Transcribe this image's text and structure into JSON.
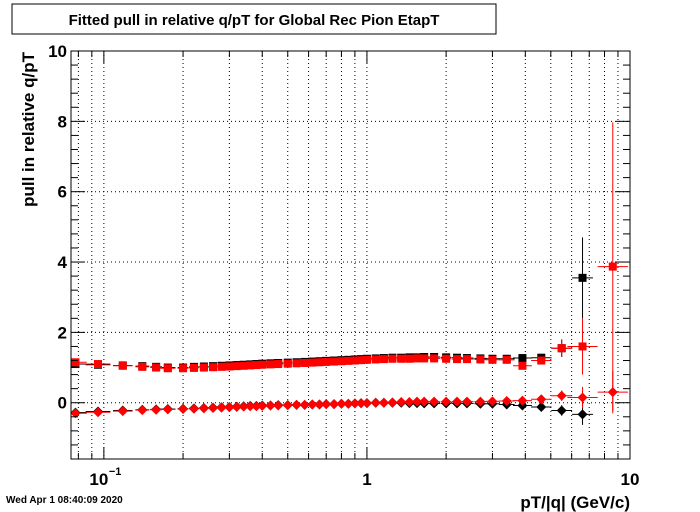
{
  "timestamp": "Wed Apr  1 08:40:09 2020",
  "chart_data": {
    "type": "scatter",
    "title": "Fitted pull in relative q/pT for Global Rec Pion EtapT",
    "xlabel": "pT/|q| (GeV/c)",
    "ylabel": "pull in relative q/pT",
    "xscale": "log",
    "xlim": [
      0.075,
      10
    ],
    "ylim": [
      -1.6,
      10
    ],
    "grid": true,
    "x_ticks": [
      {
        "value": 0.1,
        "label": "10",
        "exponent": "−1"
      },
      {
        "value": 1,
        "label": "1",
        "exponent": ""
      },
      {
        "value": 10,
        "label": "10",
        "exponent": ""
      }
    ],
    "y_ticks": [
      {
        "value": 0,
        "label": "0"
      },
      {
        "value": 2,
        "label": "2"
      },
      {
        "value": 4,
        "label": "4"
      },
      {
        "value": 6,
        "label": "6"
      },
      {
        "value": 8,
        "label": "8"
      },
      {
        "value": 10,
        "label": "10"
      }
    ],
    "series": [
      {
        "marker": "square",
        "color": "#000000",
        "x": [
          0.078,
          0.095,
          0.118,
          0.14,
          0.158,
          0.175,
          0.2,
          0.22,
          0.24,
          0.26,
          0.28,
          0.3,
          0.32,
          0.34,
          0.36,
          0.38,
          0.4,
          0.43,
          0.46,
          0.5,
          0.54,
          0.58,
          0.62,
          0.66,
          0.7,
          0.75,
          0.8,
          0.85,
          0.9,
          0.95,
          1.0,
          1.08,
          1.16,
          1.25,
          1.35,
          1.45,
          1.55,
          1.65,
          1.8,
          2.0,
          2.2,
          2.4,
          2.7,
          3.0,
          3.4,
          3.9,
          4.6,
          5.5,
          6.6
        ],
        "y": [
          1.1,
          1.08,
          1.06,
          1.04,
          1.02,
          1.0,
          1.0,
          1.02,
          1.03,
          1.04,
          1.05,
          1.06,
          1.07,
          1.08,
          1.09,
          1.1,
          1.11,
          1.12,
          1.13,
          1.14,
          1.15,
          1.16,
          1.17,
          1.18,
          1.19,
          1.2,
          1.21,
          1.22,
          1.23,
          1.24,
          1.25,
          1.26,
          1.27,
          1.28,
          1.28,
          1.29,
          1.29,
          1.3,
          1.3,
          1.29,
          1.28,
          1.27,
          1.26,
          1.25,
          1.25,
          1.27,
          1.28,
          1.55,
          3.55
        ],
        "yerr": [
          0.06,
          0.05,
          0.04,
          0.04,
          0.04,
          0.04,
          0.04,
          0.04,
          0.03,
          0.03,
          0.03,
          0.03,
          0.03,
          0.03,
          0.03,
          0.03,
          0.03,
          0.03,
          0.03,
          0.03,
          0.03,
          0.03,
          0.03,
          0.03,
          0.03,
          0.03,
          0.03,
          0.03,
          0.03,
          0.03,
          0.03,
          0.03,
          0.03,
          0.03,
          0.03,
          0.03,
          0.03,
          0.03,
          0.03,
          0.04,
          0.04,
          0.05,
          0.05,
          0.06,
          0.07,
          0.08,
          0.1,
          0.25,
          1.15
        ]
      },
      {
        "marker": "square",
        "color": "#ff0000",
        "x": [
          0.078,
          0.095,
          0.118,
          0.14,
          0.158,
          0.175,
          0.2,
          0.22,
          0.24,
          0.26,
          0.28,
          0.3,
          0.32,
          0.34,
          0.36,
          0.38,
          0.4,
          0.43,
          0.46,
          0.5,
          0.54,
          0.58,
          0.62,
          0.66,
          0.7,
          0.75,
          0.8,
          0.85,
          0.9,
          0.95,
          1.0,
          1.08,
          1.16,
          1.25,
          1.35,
          1.45,
          1.55,
          1.65,
          1.8,
          2.0,
          2.2,
          2.4,
          2.7,
          3.0,
          3.4,
          3.9,
          4.6,
          5.5,
          6.6,
          8.6
        ],
        "y": [
          1.15,
          1.1,
          1.05,
          1.02,
          1.0,
          0.98,
          0.98,
          0.99,
          1.0,
          1.01,
          1.02,
          1.03,
          1.04,
          1.05,
          1.06,
          1.07,
          1.08,
          1.09,
          1.1,
          1.11,
          1.12,
          1.13,
          1.14,
          1.15,
          1.16,
          1.17,
          1.18,
          1.19,
          1.2,
          1.21,
          1.22,
          1.23,
          1.24,
          1.25,
          1.25,
          1.25,
          1.26,
          1.26,
          1.26,
          1.25,
          1.24,
          1.24,
          1.23,
          1.22,
          1.22,
          1.05,
          1.2,
          1.55,
          1.6,
          3.87
        ],
        "yerr": [
          0.06,
          0.05,
          0.04,
          0.04,
          0.04,
          0.04,
          0.04,
          0.04,
          0.03,
          0.03,
          0.03,
          0.03,
          0.03,
          0.03,
          0.03,
          0.03,
          0.03,
          0.03,
          0.03,
          0.03,
          0.03,
          0.03,
          0.03,
          0.03,
          0.03,
          0.03,
          0.03,
          0.03,
          0.03,
          0.03,
          0.03,
          0.03,
          0.03,
          0.03,
          0.03,
          0.03,
          0.03,
          0.03,
          0.03,
          0.04,
          0.04,
          0.05,
          0.05,
          0.06,
          0.07,
          0.08,
          0.1,
          0.25,
          0.8,
          4.1
        ]
      },
      {
        "marker": "diamond",
        "color": "#000000",
        "x": [
          0.078,
          0.095,
          0.118,
          0.14,
          0.158,
          0.175,
          0.2,
          0.22,
          0.24,
          0.26,
          0.28,
          0.3,
          0.32,
          0.34,
          0.36,
          0.38,
          0.4,
          0.43,
          0.46,
          0.5,
          0.54,
          0.58,
          0.62,
          0.66,
          0.7,
          0.75,
          0.8,
          0.85,
          0.9,
          0.95,
          1.0,
          1.08,
          1.16,
          1.25,
          1.35,
          1.45,
          1.55,
          1.65,
          1.8,
          2.0,
          2.2,
          2.4,
          2.7,
          3.0,
          3.4,
          3.9,
          4.6,
          5.5,
          6.6
        ],
        "y": [
          -0.28,
          -0.25,
          -0.22,
          -0.2,
          -0.19,
          -0.18,
          -0.17,
          -0.16,
          -0.15,
          -0.14,
          -0.13,
          -0.12,
          -0.11,
          -0.1,
          -0.09,
          -0.09,
          -0.08,
          -0.08,
          -0.07,
          -0.07,
          -0.06,
          -0.06,
          -0.05,
          -0.05,
          -0.04,
          -0.04,
          -0.03,
          -0.03,
          -0.02,
          -0.01,
          -0.01,
          0.0,
          0.0,
          0.0,
          0.0,
          -0.01,
          -0.01,
          -0.02,
          -0.02,
          -0.02,
          -0.02,
          -0.02,
          -0.03,
          -0.03,
          -0.05,
          -0.08,
          -0.12,
          -0.22,
          -0.33
        ],
        "yerr": [
          0.05,
          0.04,
          0.04,
          0.03,
          0.03,
          0.03,
          0.03,
          0.03,
          0.03,
          0.03,
          0.03,
          0.03,
          0.03,
          0.03,
          0.03,
          0.03,
          0.03,
          0.03,
          0.03,
          0.03,
          0.03,
          0.03,
          0.03,
          0.03,
          0.03,
          0.03,
          0.03,
          0.03,
          0.03,
          0.03,
          0.03,
          0.03,
          0.03,
          0.03,
          0.03,
          0.03,
          0.03,
          0.03,
          0.03,
          0.03,
          0.03,
          0.04,
          0.04,
          0.05,
          0.05,
          0.06,
          0.08,
          0.15,
          0.3
        ]
      },
      {
        "marker": "diamond",
        "color": "#ff0000",
        "x": [
          0.078,
          0.095,
          0.118,
          0.14,
          0.158,
          0.175,
          0.2,
          0.22,
          0.24,
          0.26,
          0.28,
          0.3,
          0.32,
          0.34,
          0.36,
          0.38,
          0.4,
          0.43,
          0.46,
          0.5,
          0.54,
          0.58,
          0.62,
          0.66,
          0.7,
          0.75,
          0.8,
          0.85,
          0.9,
          0.95,
          1.0,
          1.08,
          1.16,
          1.25,
          1.35,
          1.45,
          1.55,
          1.65,
          1.8,
          2.0,
          2.2,
          2.4,
          2.7,
          3.0,
          3.4,
          3.9,
          4.6,
          5.5,
          6.6,
          8.6
        ],
        "y": [
          -0.3,
          -0.27,
          -0.24,
          -0.21,
          -0.2,
          -0.19,
          -0.18,
          -0.17,
          -0.16,
          -0.15,
          -0.14,
          -0.13,
          -0.12,
          -0.11,
          -0.1,
          -0.1,
          -0.09,
          -0.08,
          -0.08,
          -0.07,
          -0.06,
          -0.06,
          -0.05,
          -0.05,
          -0.04,
          -0.04,
          -0.03,
          -0.03,
          -0.02,
          -0.02,
          -0.01,
          0.0,
          0.0,
          0.01,
          0.02,
          0.02,
          0.03,
          0.03,
          0.03,
          0.03,
          0.03,
          0.03,
          0.03,
          0.04,
          0.05,
          0.06,
          0.1,
          0.2,
          0.15,
          0.3
        ],
        "yerr": [
          0.05,
          0.04,
          0.04,
          0.03,
          0.03,
          0.03,
          0.03,
          0.03,
          0.03,
          0.03,
          0.03,
          0.03,
          0.03,
          0.03,
          0.03,
          0.03,
          0.03,
          0.03,
          0.03,
          0.03,
          0.03,
          0.03,
          0.03,
          0.03,
          0.03,
          0.03,
          0.03,
          0.03,
          0.03,
          0.03,
          0.03,
          0.03,
          0.03,
          0.03,
          0.03,
          0.03,
          0.03,
          0.03,
          0.03,
          0.03,
          0.03,
          0.04,
          0.04,
          0.05,
          0.05,
          0.06,
          0.08,
          0.15,
          0.3,
          0.6
        ]
      }
    ]
  }
}
